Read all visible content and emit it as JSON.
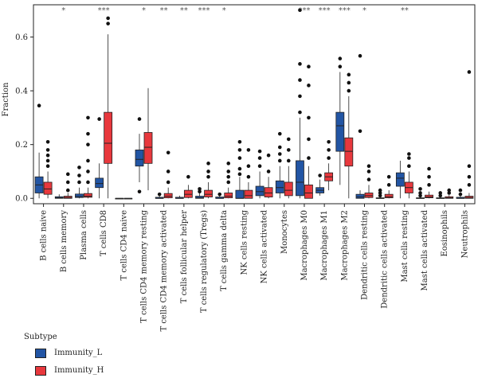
{
  "chart_data": {
    "type": "box",
    "ylabel": "Fraction",
    "xlabel": "",
    "ylim": [
      -0.02,
      0.72
    ],
    "yticks": [
      "0.0",
      "0.2",
      "0.4",
      "0.6"
    ],
    "categories": [
      "B cells naive",
      "B cells memory",
      "Plasma cells",
      "T cells CD8",
      "T cells CD4 naive",
      "T cells CD4 memory resting",
      "T cells CD4 memory activated",
      "T cells follicular helper",
      "T cells regulatory (Tregs)",
      "T cells gamma delta",
      "NK cells resting",
      "NK cells activated",
      "Monocytes",
      "Macrophages M0",
      "Macrophages M1",
      "Macrophages M2",
      "Dendritic cells resting",
      "Dendritic cells activated",
      "Mast cells resting",
      "Mast cells activated",
      "Eosinophils",
      "Neutrophils"
    ],
    "significance": [
      "",
      "*",
      "",
      "***",
      "",
      "*",
      "**",
      "**",
      "***",
      "*",
      "",
      "",
      "",
      "***",
      "***",
      "***",
      "*",
      "",
      "**",
      "",
      "",
      ""
    ],
    "legend": {
      "title": "Subtype",
      "position": "bottom-left"
    },
    "series": [
      {
        "name": "Immunity_L",
        "color": "#2255a4",
        "boxes": [
          {
            "min": 0.0,
            "q1": 0.02,
            "median": 0.05,
            "q3": 0.08,
            "max": 0.17,
            "outliers": [
              0.345
            ]
          },
          {
            "min": 0.0,
            "q1": 0.0,
            "median": 0.002,
            "q3": 0.006,
            "max": 0.015,
            "outliers": []
          },
          {
            "min": 0.0,
            "q1": 0.003,
            "median": 0.007,
            "q3": 0.016,
            "max": 0.04,
            "outliers": [
              0.06,
              0.085,
              0.115
            ]
          },
          {
            "min": 0.0,
            "q1": 0.04,
            "median": 0.055,
            "q3": 0.075,
            "max": 0.13,
            "outliers": [
              0.295
            ]
          },
          {
            "min": 0.0,
            "q1": 0.0,
            "median": 0.0,
            "q3": 0.0,
            "max": 0.0,
            "outliers": []
          },
          {
            "min": 0.06,
            "q1": 0.12,
            "median": 0.145,
            "q3": 0.18,
            "max": 0.24,
            "outliers": [
              0.025,
              0.295
            ]
          },
          {
            "min": 0.0,
            "q1": 0.0,
            "median": 0.0,
            "q3": 0.004,
            "max": 0.01,
            "outliers": [
              0.015
            ]
          },
          {
            "min": 0.0,
            "q1": 0.0,
            "median": 0.0,
            "q3": 0.004,
            "max": 0.01,
            "outliers": []
          },
          {
            "min": 0.0,
            "q1": 0.0,
            "median": 0.002,
            "q3": 0.008,
            "max": 0.02,
            "outliers": [
              0.025,
              0.035
            ]
          },
          {
            "min": 0.0,
            "q1": 0.0,
            "median": 0.0,
            "q3": 0.005,
            "max": 0.01,
            "outliers": [
              0.015
            ]
          },
          {
            "min": 0.0,
            "q1": 0.0,
            "median": 0.0,
            "q3": 0.03,
            "max": 0.08,
            "outliers": [
              0.09,
              0.11,
              0.15,
              0.18,
              0.21
            ]
          },
          {
            "min": 0.0,
            "q1": 0.01,
            "median": 0.025,
            "q3": 0.045,
            "max": 0.1,
            "outliers": [
              0.12,
              0.15,
              0.175
            ]
          },
          {
            "min": 0.0,
            "q1": 0.02,
            "median": 0.04,
            "q3": 0.065,
            "max": 0.12,
            "outliers": [
              0.14,
              0.165,
              0.19,
              0.24
            ]
          },
          {
            "min": 0.0,
            "q1": 0.01,
            "median": 0.06,
            "q3": 0.14,
            "max": 0.3,
            "outliers": [
              0.32,
              0.38,
              0.44,
              0.5,
              0.7
            ]
          },
          {
            "min": 0.01,
            "q1": 0.02,
            "median": 0.03,
            "q3": 0.04,
            "max": 0.07,
            "outliers": [
              0.085
            ]
          },
          {
            "min": 0.05,
            "q1": 0.175,
            "median": 0.27,
            "q3": 0.32,
            "max": 0.47,
            "outliers": [
              0.49,
              0.52
            ]
          },
          {
            "min": 0.0,
            "q1": 0.0,
            "median": 0.005,
            "q3": 0.015,
            "max": 0.03,
            "outliers": [
              0.25,
              0.53
            ]
          },
          {
            "min": 0.0,
            "q1": 0.0,
            "median": 0.0,
            "q3": 0.002,
            "max": 0.006,
            "outliers": [
              0.01,
              0.02,
              0.03
            ]
          },
          {
            "min": 0.0,
            "q1": 0.045,
            "median": 0.075,
            "q3": 0.095,
            "max": 0.14,
            "outliers": []
          },
          {
            "min": 0.0,
            "q1": 0.0,
            "median": 0.0,
            "q3": 0.002,
            "max": 0.006,
            "outliers": [
              0.01,
              0.02,
              0.035
            ]
          },
          {
            "min": 0.0,
            "q1": 0.0,
            "median": 0.0,
            "q3": 0.002,
            "max": 0.006,
            "outliers": [
              0.01,
              0.02
            ]
          },
          {
            "min": 0.0,
            "q1": 0.0,
            "median": 0.0,
            "q3": 0.004,
            "max": 0.01,
            "outliers": [
              0.015,
              0.03
            ]
          }
        ]
      },
      {
        "name": "Immunity_H",
        "color": "#e8383d",
        "boxes": [
          {
            "min": 0.0,
            "q1": 0.015,
            "median": 0.035,
            "q3": 0.06,
            "max": 0.1,
            "outliers": [
              0.12,
              0.14,
              0.16,
              0.18,
              0.21
            ]
          },
          {
            "min": 0.0,
            "q1": 0.0,
            "median": 0.003,
            "q3": 0.008,
            "max": 0.02,
            "outliers": [
              0.03,
              0.06,
              0.09
            ]
          },
          {
            "min": 0.0,
            "q1": 0.004,
            "median": 0.008,
            "q3": 0.018,
            "max": 0.04,
            "outliers": [
              0.06,
              0.1,
              0.14,
              0.2,
              0.24,
              0.3
            ]
          },
          {
            "min": 0.0,
            "q1": 0.13,
            "median": 0.205,
            "q3": 0.32,
            "max": 0.61,
            "outliers": [
              0.65,
              0.67
            ]
          },
          {
            "min": 0.0,
            "q1": 0.0,
            "median": 0.0,
            "q3": 0.0,
            "max": 0.0,
            "outliers": []
          },
          {
            "min": 0.03,
            "q1": 0.13,
            "median": 0.19,
            "q3": 0.245,
            "max": 0.41,
            "outliers": []
          },
          {
            "min": 0.0,
            "q1": 0.002,
            "median": 0.008,
            "q3": 0.018,
            "max": 0.04,
            "outliers": [
              0.06,
              0.1,
              0.17
            ]
          },
          {
            "min": 0.0,
            "q1": 0.003,
            "median": 0.015,
            "q3": 0.03,
            "max": 0.05,
            "outliers": [
              0.08
            ]
          },
          {
            "min": 0.0,
            "q1": 0.005,
            "median": 0.015,
            "q3": 0.03,
            "max": 0.06,
            "outliers": [
              0.08,
              0.1,
              0.13
            ]
          },
          {
            "min": 0.0,
            "q1": 0.002,
            "median": 0.008,
            "q3": 0.02,
            "max": 0.04,
            "outliers": [
              0.06,
              0.08,
              0.1,
              0.13
            ]
          },
          {
            "min": 0.0,
            "q1": 0.0,
            "median": 0.01,
            "q3": 0.03,
            "max": 0.06,
            "outliers": [
              0.08,
              0.12,
              0.18
            ]
          },
          {
            "min": 0.0,
            "q1": 0.005,
            "median": 0.02,
            "q3": 0.04,
            "max": 0.08,
            "outliers": [
              0.1,
              0.16
            ]
          },
          {
            "min": 0.0,
            "q1": 0.01,
            "median": 0.03,
            "q3": 0.06,
            "max": 0.12,
            "outliers": [
              0.14,
              0.18,
              0.22
            ]
          },
          {
            "min": 0.0,
            "q1": 0.0,
            "median": 0.02,
            "q3": 0.05,
            "max": 0.12,
            "outliers": [
              0.15,
              0.22,
              0.3,
              0.42,
              0.49
            ]
          },
          {
            "min": 0.03,
            "q1": 0.065,
            "median": 0.08,
            "q3": 0.095,
            "max": 0.13,
            "outliers": [
              0.15,
              0.18,
              0.21
            ]
          },
          {
            "min": 0.0,
            "q1": 0.12,
            "median": 0.175,
            "q3": 0.225,
            "max": 0.38,
            "outliers": [
              0.4,
              0.43,
              0.46
            ]
          },
          {
            "min": 0.0,
            "q1": 0.003,
            "median": 0.01,
            "q3": 0.02,
            "max": 0.05,
            "outliers": [
              0.07,
              0.1,
              0.12
            ]
          },
          {
            "min": 0.0,
            "q1": 0.002,
            "median": 0.006,
            "q3": 0.015,
            "max": 0.03,
            "outliers": [
              0.05,
              0.08
            ]
          },
          {
            "min": 0.0,
            "q1": 0.02,
            "median": 0.04,
            "q3": 0.06,
            "max": 0.1,
            "outliers": [
              0.12,
              0.15,
              0.165
            ]
          },
          {
            "min": 0.0,
            "q1": 0.002,
            "median": 0.005,
            "q3": 0.012,
            "max": 0.025,
            "outliers": [
              0.05,
              0.08,
              0.11
            ]
          },
          {
            "min": 0.0,
            "q1": 0.0,
            "median": 0.002,
            "q3": 0.006,
            "max": 0.012,
            "outliers": [
              0.02,
              0.03
            ]
          },
          {
            "min": 0.0,
            "q1": 0.0,
            "median": 0.003,
            "q3": 0.008,
            "max": 0.02,
            "outliers": [
              0.05,
              0.08,
              0.12,
              0.47
            ]
          }
        ]
      }
    ]
  }
}
